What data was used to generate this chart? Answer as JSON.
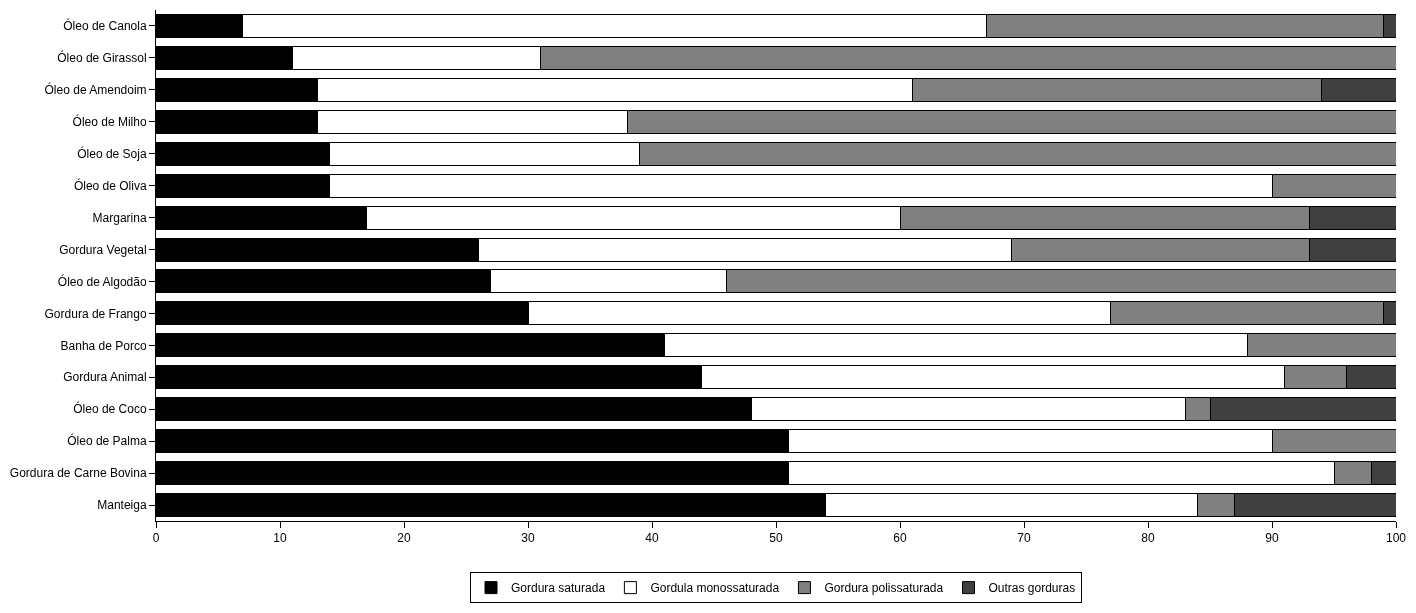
{
  "chart_data": {
    "type": "bar",
    "orientation": "horizontal",
    "stacked": true,
    "categories": [
      "Óleo de Canola",
      "Óleo de Girassol",
      "Óleo de Amendoim",
      "Óleo de Milho",
      "Óleo de Soja",
      "Óleo de Oliva",
      "Margarina",
      "Gordura Vegetal",
      "Óleo de Algodão",
      "Gordura de Frango",
      "Banha de Porco",
      "Gordura Animal",
      "Óleo de Coco",
      "Óleo de Palma",
      "Gordura de Carne Bovina",
      "Manteiga"
    ],
    "series": [
      {
        "name": "Gordura saturada",
        "color": "#000000",
        "values": [
          7,
          11,
          13,
          13,
          14,
          14,
          17,
          26,
          27,
          30,
          41,
          44,
          48,
          51,
          51,
          54
        ]
      },
      {
        "name": "Gordula monossaturada",
        "color": "#ffffff",
        "values": [
          60,
          20,
          48,
          25,
          25,
          76,
          43,
          43,
          19,
          47,
          47,
          47,
          35,
          39,
          44,
          30
        ]
      },
      {
        "name": "Gordura polissaturada",
        "color": "#808080",
        "values": [
          32,
          69,
          33,
          62,
          61,
          10,
          33,
          24,
          54,
          22,
          12,
          5,
          2,
          10,
          3,
          3
        ]
      },
      {
        "name": "Outras gorduras",
        "color": "#404040",
        "values": [
          1,
          0,
          6,
          0,
          0,
          0,
          7,
          7,
          0,
          1,
          0,
          4,
          15,
          0,
          2,
          13
        ]
      }
    ],
    "xlim": [
      0,
      100
    ],
    "xticks": [
      0,
      10,
      20,
      30,
      40,
      50,
      60,
      70,
      80,
      90,
      100
    ],
    "grid": false,
    "legend": "bottom"
  }
}
